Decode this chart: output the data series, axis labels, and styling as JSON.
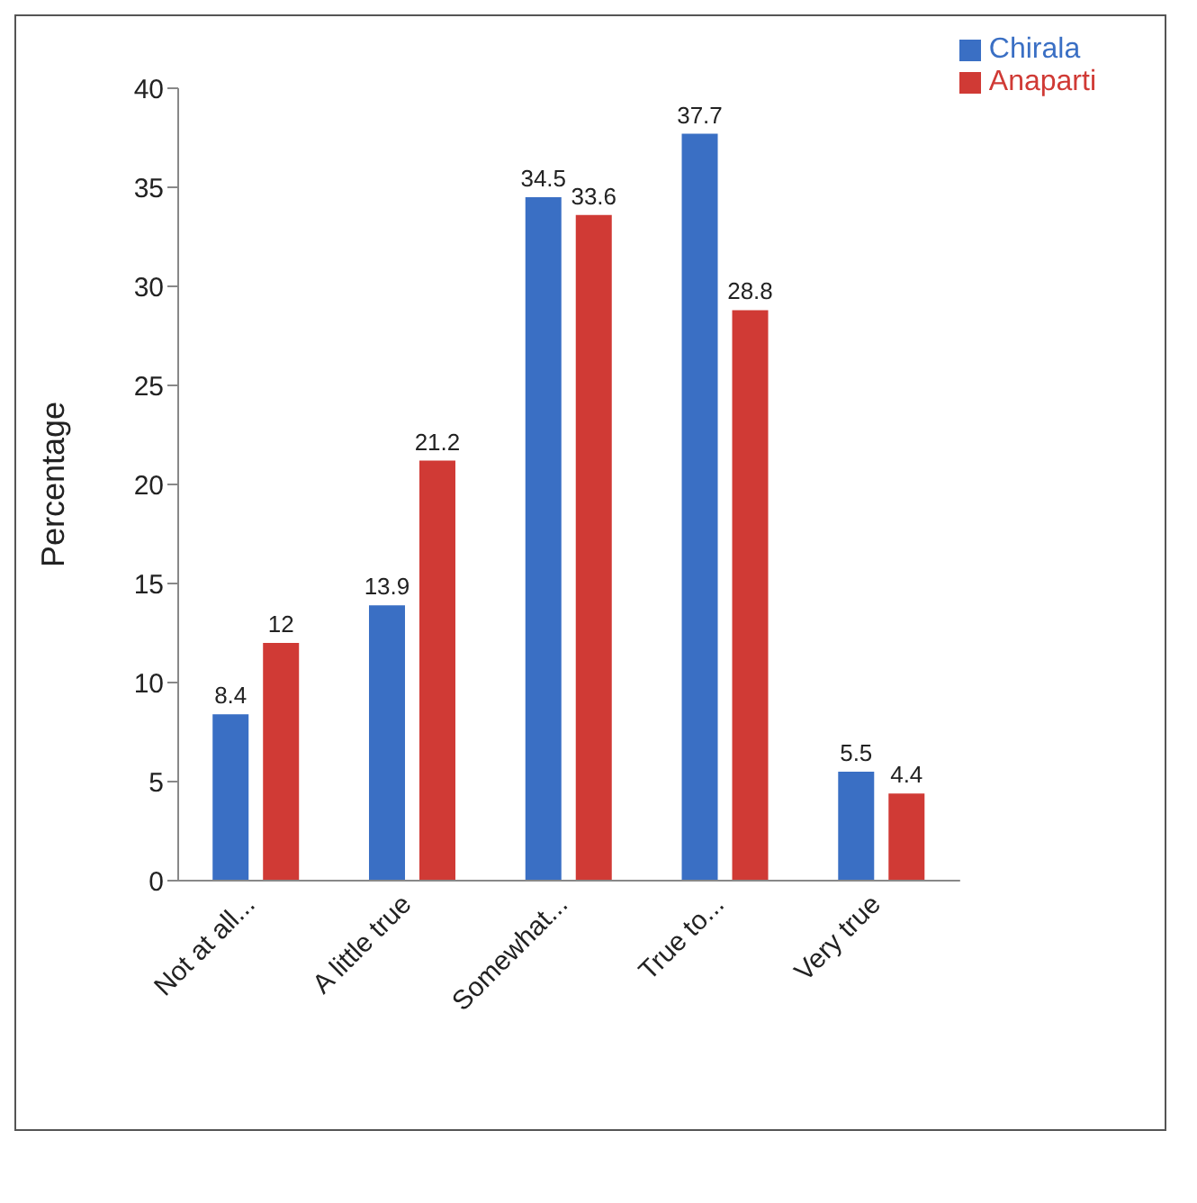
{
  "chart_data": {
    "type": "bar",
    "ylabel": "Percentage",
    "categories": [
      "Not at all...",
      "A little true",
      "Somewhat...",
      "True to...",
      "Very true"
    ],
    "series": [
      {
        "name": "Chirala",
        "color": "#3a6fc4",
        "values": [
          8.4,
          13.9,
          34.5,
          37.7,
          5.5
        ]
      },
      {
        "name": "Anaparti",
        "color": "#d03a35",
        "values": [
          12,
          21.2,
          33.6,
          28.8,
          4.4
        ]
      }
    ],
    "ylim": [
      0,
      40
    ],
    "yticks": [
      0,
      5,
      10,
      15,
      20,
      25,
      30,
      35,
      40
    ],
    "grid": false,
    "legend": "top right",
    "data_labels": true
  }
}
